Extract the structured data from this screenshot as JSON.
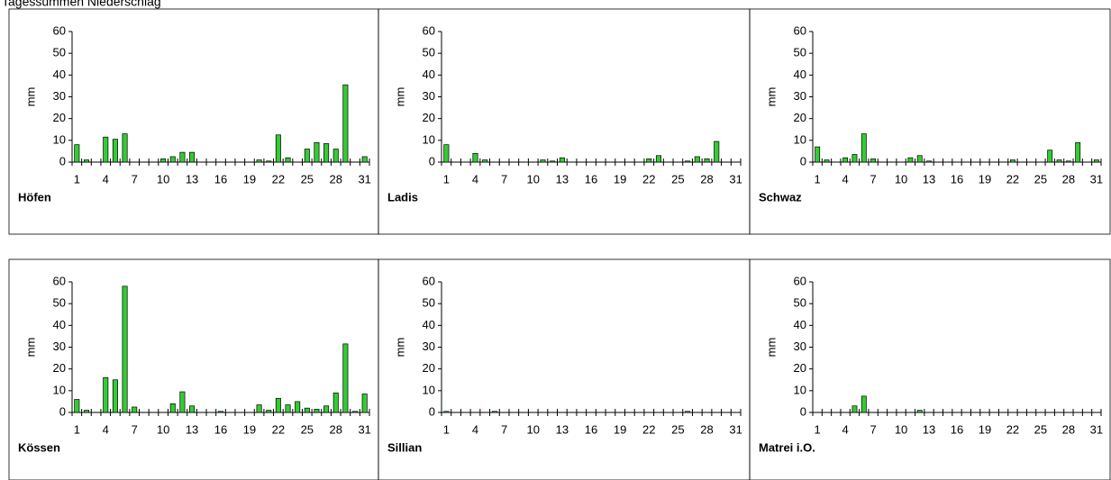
{
  "title": "Tagessummen Niederschlag",
  "chart_data": [
    {
      "type": "bar",
      "title": "Höfen",
      "ylabel": "mm",
      "color": "#33cc33",
      "ylim": [
        0,
        60
      ],
      "yticks": [
        0,
        10,
        20,
        30,
        40,
        50,
        60
      ],
      "categories": [
        "1",
        null,
        null,
        "4",
        null,
        null,
        "7",
        null,
        null,
        "10",
        null,
        null,
        "13",
        null,
        null,
        "16",
        null,
        null,
        "19",
        null,
        null,
        "22",
        null,
        null,
        "25",
        null,
        null,
        "28",
        null,
        null,
        "31"
      ],
      "values": [
        8,
        1,
        0,
        11.5,
        10.5,
        13,
        0,
        0,
        0,
        1.5,
        2.5,
        4.5,
        4.5,
        0,
        0,
        0,
        0,
        0,
        0,
        1,
        0.5,
        12.5,
        2,
        0,
        6,
        9,
        8.5,
        6,
        35.5,
        0,
        2.5
      ]
    },
    {
      "type": "bar",
      "title": "Ladis",
      "ylabel": "mm",
      "color": "#33cc33",
      "ylim": [
        0,
        60
      ],
      "yticks": [
        0,
        10,
        20,
        30,
        40,
        50,
        60
      ],
      "categories": [
        "1",
        null,
        null,
        "4",
        null,
        null,
        "7",
        null,
        null,
        "10",
        null,
        null,
        "13",
        null,
        null,
        "16",
        null,
        null,
        "19",
        null,
        null,
        "22",
        null,
        null,
        "25",
        null,
        null,
        "28",
        null,
        null,
        "31"
      ],
      "values": [
        8,
        0,
        0,
        4,
        1,
        0,
        0,
        0,
        0,
        0,
        1,
        0.5,
        2,
        0,
        0,
        0,
        0,
        0,
        0,
        0,
        0,
        1.5,
        3,
        0,
        0,
        0.5,
        2.5,
        1.5,
        9.5,
        0,
        0
      ]
    },
    {
      "type": "bar",
      "title": "Schwaz",
      "ylabel": "mm",
      "color": "#33cc33",
      "ylim": [
        0,
        60
      ],
      "yticks": [
        0,
        10,
        20,
        30,
        40,
        50,
        60
      ],
      "categories": [
        "1",
        null,
        null,
        "4",
        null,
        null,
        "7",
        null,
        null,
        "10",
        null,
        null,
        "13",
        null,
        null,
        "16",
        null,
        null,
        "19",
        null,
        null,
        "22",
        null,
        null,
        "25",
        null,
        null,
        "28",
        null,
        null,
        "31"
      ],
      "values": [
        7,
        1,
        0,
        2,
        3.5,
        13,
        1.5,
        0,
        0,
        0,
        2,
        3,
        0.5,
        0,
        0,
        0,
        0,
        0,
        0,
        0,
        0,
        1,
        0,
        0,
        0,
        5.5,
        1,
        0.5,
        9,
        0,
        1
      ]
    },
    {
      "type": "bar",
      "title": "Kössen",
      "ylabel": "mm",
      "color": "#33cc33",
      "ylim": [
        0,
        60
      ],
      "yticks": [
        0,
        10,
        20,
        30,
        40,
        50,
        60
      ],
      "categories": [
        "1",
        null,
        null,
        "4",
        null,
        null,
        "7",
        null,
        null,
        "10",
        null,
        null,
        "13",
        null,
        null,
        "16",
        null,
        null,
        "19",
        null,
        null,
        "22",
        null,
        null,
        "25",
        null,
        null,
        "28",
        null,
        null,
        "31"
      ],
      "values": [
        6,
        1,
        0,
        16,
        15,
        58,
        2.5,
        0,
        0,
        0,
        4,
        9.5,
        3,
        0,
        0,
        0.5,
        0,
        0,
        0,
        3.5,
        1,
        6.5,
        3.5,
        5,
        2,
        1.5,
        3,
        9,
        31.5,
        0.5,
        8.5
      ]
    },
    {
      "type": "bar",
      "title": "Sillian",
      "ylabel": "mm",
      "color": "#33cc33",
      "ylim": [
        0,
        60
      ],
      "yticks": [
        0,
        10,
        20,
        30,
        40,
        50,
        60
      ],
      "categories": [
        "1",
        null,
        null,
        "4",
        null,
        null,
        "7",
        null,
        null,
        "10",
        null,
        null,
        "13",
        null,
        null,
        "16",
        null,
        null,
        "19",
        null,
        null,
        "22",
        null,
        null,
        "25",
        null,
        null,
        "28",
        null,
        null,
        "31"
      ],
      "values": [
        0.5,
        0,
        0,
        0,
        0,
        0.5,
        0,
        0,
        0,
        0,
        0,
        0,
        0,
        0,
        0,
        0,
        0,
        0,
        0,
        0,
        0,
        0,
        0,
        0,
        0,
        0.5,
        0,
        0,
        0,
        0,
        0
      ]
    },
    {
      "type": "bar",
      "title": "Matrei i.O.",
      "ylabel": "mm",
      "color": "#33cc33",
      "ylim": [
        0,
        60
      ],
      "yticks": [
        0,
        10,
        20,
        30,
        40,
        50,
        60
      ],
      "categories": [
        "1",
        null,
        null,
        "4",
        null,
        null,
        "7",
        null,
        null,
        "10",
        null,
        null,
        "13",
        null,
        null,
        "16",
        null,
        null,
        "19",
        null,
        null,
        "22",
        null,
        null,
        "25",
        null,
        null,
        "28",
        null,
        null,
        "31"
      ],
      "values": [
        0,
        0,
        0,
        0,
        3,
        7.5,
        0,
        0,
        0,
        0,
        0,
        1,
        0,
        0,
        0,
        0,
        0,
        0,
        0,
        0,
        0,
        0,
        0,
        0,
        0,
        0,
        0,
        0,
        0,
        0,
        0
      ]
    }
  ]
}
